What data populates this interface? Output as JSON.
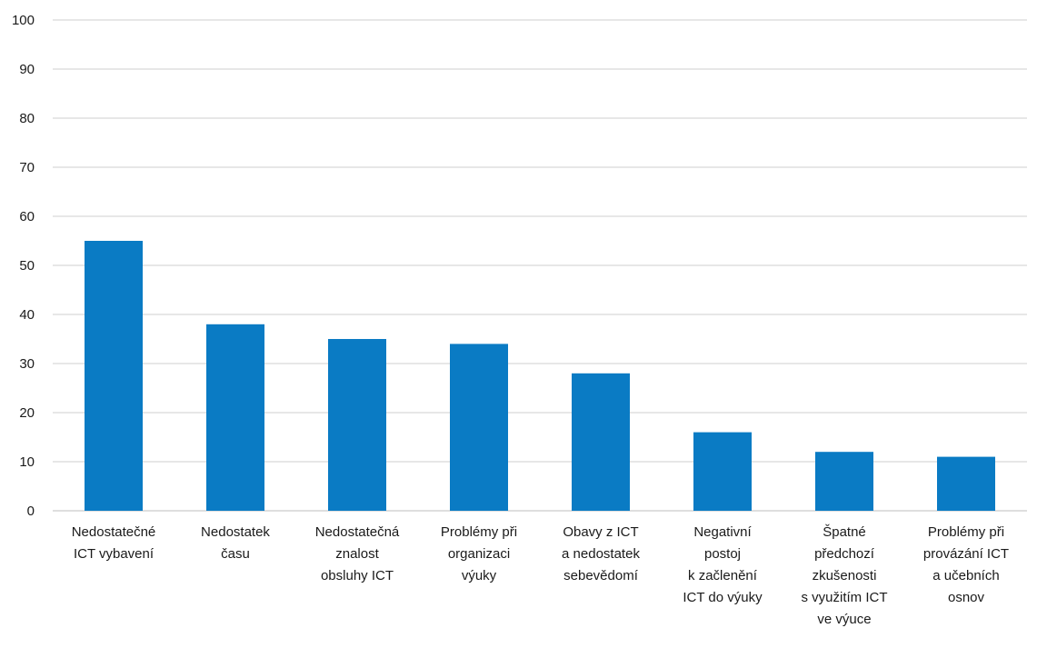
{
  "chart_data": {
    "type": "bar",
    "categories": [
      [
        "Nedostatečné",
        "ICT vybavení"
      ],
      [
        "Nedostatek",
        "času"
      ],
      [
        "Nedostatečná",
        "znalost",
        "obsluhy ICT"
      ],
      [
        "Problémy při",
        "organizaci",
        "výuky"
      ],
      [
        "Obavy z ICT",
        "a nedostatek",
        "sebevědomí"
      ],
      [
        "Negativní",
        "postoj",
        "k začlenění",
        "ICT do výuky"
      ],
      [
        "Špatné",
        "předchozí",
        "zkušenosti",
        "s využitím ICT",
        "ve výuce"
      ],
      [
        "Problémy při",
        "provázání ICT",
        "a učebních",
        "osnov"
      ]
    ],
    "values": [
      55,
      38,
      35,
      34,
      28,
      16,
      12,
      11
    ],
    "ylim": [
      0,
      100
    ],
    "yticks": [
      "0",
      "10",
      "20",
      "30",
      "40",
      "50",
      "60",
      "70",
      "80",
      "90",
      "100"
    ],
    "title": "",
    "xlabel": "",
    "ylabel": "",
    "grid": true,
    "bar_color": "#0a7bc4",
    "grid_color": "#cfcfcf"
  }
}
